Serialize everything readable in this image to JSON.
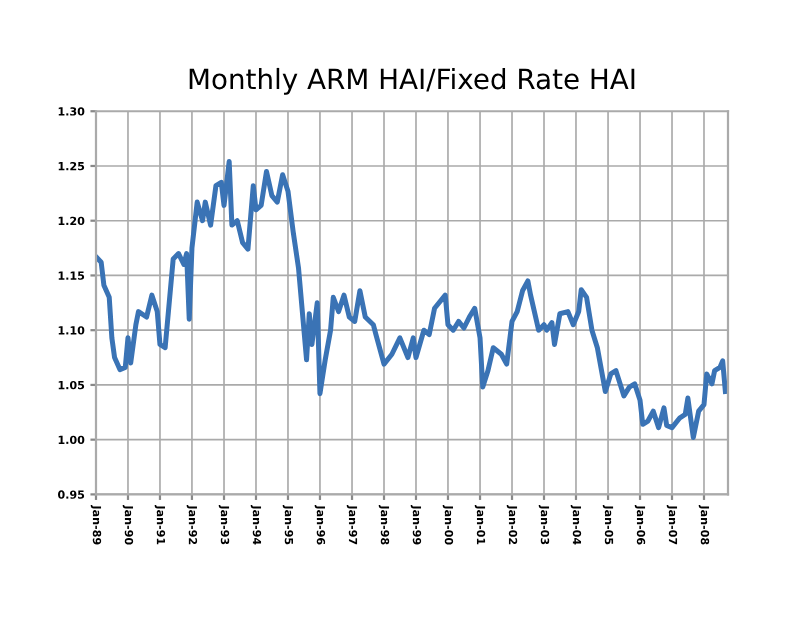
{
  "chart_data": {
    "type": "line",
    "title": "Monthly ARM HAI/Fixed Rate HAI",
    "x": [
      "1989-01",
      "1989-03",
      "1989-04",
      "1989-06",
      "1989-07",
      "1989-08",
      "1989-10",
      "1989-12",
      "1990-01",
      "1990-02",
      "1990-04",
      "1990-05",
      "1990-08",
      "1990-10",
      "1990-12",
      "1991-01",
      "1991-03",
      "1991-06",
      "1991-08",
      "1991-10",
      "1991-11",
      "1991-12",
      "1992-01",
      "1992-03",
      "1992-05",
      "1992-06",
      "1992-08",
      "1992-10",
      "1992-12",
      "1993-01",
      "1993-03",
      "1993-04",
      "1993-06",
      "1993-08",
      "1993-10",
      "1993-12",
      "1994-01",
      "1994-03",
      "1994-05",
      "1994-07",
      "1994-09",
      "1994-11",
      "1995-01",
      "1995-03",
      "1995-05",
      "1995-08",
      "1995-09",
      "1995-10",
      "1995-12",
      "1996-01",
      "1996-03",
      "1996-05",
      "1996-06",
      "1996-08",
      "1996-10",
      "1996-12",
      "1997-02",
      "1997-04",
      "1997-06",
      "1997-09",
      "1997-10",
      "1998-01",
      "1998-04",
      "1998-07",
      "1998-10",
      "1998-12",
      "1999-01",
      "1999-04",
      "1999-06",
      "1999-08",
      "1999-12",
      "2000-01",
      "2000-03",
      "2000-05",
      "2000-07",
      "2000-09",
      "2000-11",
      "2001-01",
      "2001-02",
      "2001-04",
      "2001-06",
      "2001-09",
      "2001-11",
      "2002-01",
      "2002-03",
      "2002-05",
      "2002-07",
      "2002-08",
      "2002-11",
      "2003-01",
      "2003-02",
      "2003-04",
      "2003-05",
      "2003-07",
      "2003-10",
      "2003-12",
      "2004-02",
      "2004-03",
      "2004-05",
      "2004-07",
      "2004-09",
      "2004-12",
      "2005-02",
      "2005-04",
      "2005-07",
      "2005-09",
      "2005-11",
      "2006-01",
      "2006-02",
      "2006-04",
      "2006-06",
      "2006-08",
      "2006-10",
      "2006-11",
      "2007-01",
      "2007-04",
      "2007-06",
      "2007-07",
      "2007-09",
      "2007-11",
      "2008-01",
      "2008-02",
      "2008-04",
      "2008-05",
      "2008-07",
      "2008-08",
      "2008-09"
    ],
    "series": [
      {
        "color": "#3a73b5",
        "values": [
          1.167,
          1.162,
          1.141,
          1.13,
          1.093,
          1.075,
          1.064,
          1.066,
          1.093,
          1.07,
          1.105,
          1.117,
          1.112,
          1.132,
          1.117,
          1.087,
          1.084,
          1.165,
          1.17,
          1.16,
          1.17,
          1.11,
          1.175,
          1.217,
          1.2,
          1.217,
          1.196,
          1.232,
          1.235,
          1.214,
          1.254,
          1.196,
          1.2,
          1.18,
          1.174,
          1.232,
          1.21,
          1.214,
          1.245,
          1.223,
          1.217,
          1.242,
          1.227,
          1.19,
          1.157,
          1.073,
          1.115,
          1.087,
          1.125,
          1.042,
          1.073,
          1.1,
          1.13,
          1.117,
          1.132,
          1.112,
          1.108,
          1.136,
          1.112,
          1.105,
          1.096,
          1.069,
          1.078,
          1.093,
          1.075,
          1.093,
          1.075,
          1.1,
          1.096,
          1.12,
          1.132,
          1.105,
          1.1,
          1.108,
          1.102,
          1.112,
          1.12,
          1.093,
          1.048,
          1.063,
          1.084,
          1.078,
          1.069,
          1.108,
          1.117,
          1.136,
          1.145,
          1.132,
          1.1,
          1.105,
          1.1,
          1.107,
          1.087,
          1.115,
          1.117,
          1.105,
          1.117,
          1.137,
          1.13,
          1.1,
          1.084,
          1.044,
          1.06,
          1.063,
          1.04,
          1.048,
          1.051,
          1.036,
          1.014,
          1.017,
          1.026,
          1.011,
          1.029,
          1.013,
          1.011,
          1.02,
          1.023,
          1.038,
          1.002,
          1.026,
          1.032,
          1.06,
          1.051,
          1.063,
          1.066,
          1.072,
          1.044
        ]
      }
    ],
    "xlim": [
      "1989-01",
      "2008-10"
    ],
    "xticks": [
      {
        "value": "1989-01",
        "label": "Jan-89"
      },
      {
        "value": "1990-01",
        "label": "Jan-90"
      },
      {
        "value": "1991-01",
        "label": "Jan-91"
      },
      {
        "value": "1992-01",
        "label": "Jan-92"
      },
      {
        "value": "1993-01",
        "label": "Jan-93"
      },
      {
        "value": "1994-01",
        "label": "Jan-94"
      },
      {
        "value": "1995-01",
        "label": "Jan-95"
      },
      {
        "value": "1996-01",
        "label": "Jan-96"
      },
      {
        "value": "1997-01",
        "label": "Jan-97"
      },
      {
        "value": "1998-01",
        "label": "Jan-98"
      },
      {
        "value": "1999-01",
        "label": "Jan-99"
      },
      {
        "value": "2000-01",
        "label": "Jan-00"
      },
      {
        "value": "2001-01",
        "label": "Jan-01"
      },
      {
        "value": "2002-01",
        "label": "Jan-02"
      },
      {
        "value": "2003-01",
        "label": "Jan-03"
      },
      {
        "value": "2004-01",
        "label": "Jan-04"
      },
      {
        "value": "2005-01",
        "label": "Jan-05"
      },
      {
        "value": "2006-01",
        "label": "Jan-06"
      },
      {
        "value": "2007-01",
        "label": "Jan-07"
      },
      {
        "value": "2008-01",
        "label": "Jan-08"
      }
    ],
    "ylim": [
      0.95,
      1.3
    ],
    "yticks": [
      {
        "value": 0.95,
        "label": "0.95"
      },
      {
        "value": 1.0,
        "label": "1.00"
      },
      {
        "value": 1.05,
        "label": "1.05"
      },
      {
        "value": 1.1,
        "label": "1.10"
      },
      {
        "value": 1.15,
        "label": "1.15"
      },
      {
        "value": 1.2,
        "label": "1.20"
      },
      {
        "value": 1.25,
        "label": "1.25"
      },
      {
        "value": 1.3,
        "label": "1.30"
      }
    ],
    "grid": true,
    "marker": "none",
    "line_style": "solid"
  }
}
